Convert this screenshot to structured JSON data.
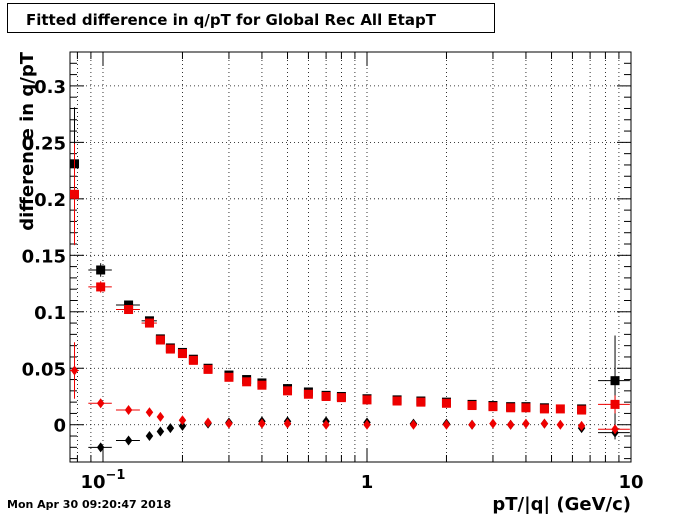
{
  "title": "Fitted difference in q/pT for Global Rec All EtapT",
  "footer": "Mon Apr 30 09:20:47 2018",
  "colors": {
    "series_a": "#000000",
    "series_b": "#ee0000",
    "grid": "#000000"
  },
  "chart_data": {
    "type": "scatter",
    "title": "Fitted difference in q/pT for Global Rec All EtapT",
    "xlabel": "pT/|q| (GeV/c)",
    "ylabel": "difference in q/pT",
    "xscale": "log",
    "xlim": [
      0.075,
      10
    ],
    "ylim": [
      -0.033,
      0.33
    ],
    "grid": true,
    "x_tick_labels": [
      {
        "value": 0.1,
        "base": "10",
        "exp": "−1"
      },
      {
        "value": 1,
        "base": "1",
        "exp": ""
      },
      {
        "value": 10,
        "base": "10",
        "exp": ""
      }
    ],
    "y_tick_labels": [
      "0",
      "0.05",
      "0.1",
      "0.15",
      "0.2",
      "0.25",
      "0.3"
    ],
    "y_tick_values": [
      0,
      0.05,
      0.1,
      0.15,
      0.2,
      0.25,
      0.3
    ],
    "series": [
      {
        "color": "#000000",
        "marker": "square",
        "points": [
          {
            "x": 0.078,
            "y": 0.231,
            "xerr": 0.003,
            "yerr": 0.05
          },
          {
            "x": 0.098,
            "y": 0.137,
            "xerr": 0.01,
            "yerr": 0.006
          },
          {
            "x": 0.125,
            "y": 0.106,
            "xerr": 0.013,
            "yerr": 0.003
          },
          {
            "x": 0.15,
            "y": 0.092,
            "xerr": 0.01,
            "yerr": 0.002
          },
          {
            "x": 0.165,
            "y": 0.076
          },
          {
            "x": 0.18,
            "y": 0.068
          },
          {
            "x": 0.2,
            "y": 0.064
          },
          {
            "x": 0.22,
            "y": 0.058
          },
          {
            "x": 0.25,
            "y": 0.05
          },
          {
            "x": 0.3,
            "y": 0.044
          },
          {
            "x": 0.35,
            "y": 0.04
          },
          {
            "x": 0.4,
            "y": 0.037
          },
          {
            "x": 0.5,
            "y": 0.032
          },
          {
            "x": 0.6,
            "y": 0.029
          },
          {
            "x": 0.7,
            "y": 0.026
          },
          {
            "x": 0.8,
            "y": 0.025
          },
          {
            "x": 1.0,
            "y": 0.023
          },
          {
            "x": 1.3,
            "y": 0.022
          },
          {
            "x": 1.6,
            "y": 0.021
          },
          {
            "x": 2.0,
            "y": 0.02
          },
          {
            "x": 2.5,
            "y": 0.018
          },
          {
            "x": 3.0,
            "y": 0.017
          },
          {
            "x": 3.5,
            "y": 0.016
          },
          {
            "x": 4.0,
            "y": 0.016
          },
          {
            "x": 4.7,
            "y": 0.015
          },
          {
            "x": 6.5,
            "y": 0.014
          },
          {
            "x": 8.7,
            "y": 0.039,
            "xerr": 1.2,
            "yerr": 0.04
          }
        ]
      },
      {
        "color": "#ee0000",
        "marker": "square",
        "points": [
          {
            "x": 0.078,
            "y": 0.204,
            "xerr": 0.003,
            "yerr": 0.045
          },
          {
            "x": 0.098,
            "y": 0.122,
            "xerr": 0.01,
            "yerr": 0.005
          },
          {
            "x": 0.125,
            "y": 0.102,
            "xerr": 0.013,
            "yerr": 0.003
          },
          {
            "x": 0.15,
            "y": 0.09,
            "xerr": 0.01,
            "yerr": 0.002
          },
          {
            "x": 0.165,
            "y": 0.075
          },
          {
            "x": 0.18,
            "y": 0.067
          },
          {
            "x": 0.2,
            "y": 0.063
          },
          {
            "x": 0.22,
            "y": 0.057
          },
          {
            "x": 0.25,
            "y": 0.049
          },
          {
            "x": 0.3,
            "y": 0.042
          },
          {
            "x": 0.35,
            "y": 0.038
          },
          {
            "x": 0.4,
            "y": 0.035
          },
          {
            "x": 0.5,
            "y": 0.03
          },
          {
            "x": 0.6,
            "y": 0.027
          },
          {
            "x": 0.7,
            "y": 0.025
          },
          {
            "x": 0.8,
            "y": 0.024
          },
          {
            "x": 1.0,
            "y": 0.022
          },
          {
            "x": 1.3,
            "y": 0.021
          },
          {
            "x": 1.6,
            "y": 0.02
          },
          {
            "x": 2.0,
            "y": 0.019
          },
          {
            "x": 2.5,
            "y": 0.017
          },
          {
            "x": 3.0,
            "y": 0.016
          },
          {
            "x": 3.5,
            "y": 0.015
          },
          {
            "x": 4.0,
            "y": 0.015
          },
          {
            "x": 4.7,
            "y": 0.014
          },
          {
            "x": 5.4,
            "y": 0.014
          },
          {
            "x": 6.5,
            "y": 0.013
          },
          {
            "x": 8.7,
            "y": 0.018,
            "xerr": 1.2,
            "yerr": 0.008
          }
        ]
      },
      {
        "color": "#000000",
        "marker": "diamond",
        "points": [
          {
            "x": 0.098,
            "y": -0.02,
            "xerr": 0.01,
            "yerr": 0.003
          },
          {
            "x": 0.125,
            "y": -0.014,
            "xerr": 0.013,
            "yerr": 0.002
          },
          {
            "x": 0.15,
            "y": -0.01
          },
          {
            "x": 0.165,
            "y": -0.006
          },
          {
            "x": 0.18,
            "y": -0.003
          },
          {
            "x": 0.2,
            "y": -0.001
          },
          {
            "x": 0.25,
            "y": 0.001
          },
          {
            "x": 0.3,
            "y": 0.002
          },
          {
            "x": 0.4,
            "y": 0.003
          },
          {
            "x": 0.5,
            "y": 0.003
          },
          {
            "x": 0.7,
            "y": 0.003
          },
          {
            "x": 1.0,
            "y": 0.002
          },
          {
            "x": 1.5,
            "y": 0.001
          },
          {
            "x": 2.0,
            "y": 0.001
          },
          {
            "x": 2.5,
            "y": 0.0
          },
          {
            "x": 3.5,
            "y": 0.0
          },
          {
            "x": 4.7,
            "y": 0.001
          },
          {
            "x": 6.5,
            "y": -0.003
          },
          {
            "x": 8.7,
            "y": -0.007,
            "xerr": 1.2,
            "yerr": 0.006
          }
        ]
      },
      {
        "color": "#ee0000",
        "marker": "diamond",
        "points": [
          {
            "x": 0.078,
            "y": 0.048,
            "xerr": 0.003,
            "yerr": 0.025
          },
          {
            "x": 0.098,
            "y": 0.019,
            "xerr": 0.01,
            "yerr": 0.003
          },
          {
            "x": 0.125,
            "y": 0.013,
            "xerr": 0.013,
            "yerr": 0.002
          },
          {
            "x": 0.15,
            "y": 0.011
          },
          {
            "x": 0.165,
            "y": 0.007
          },
          {
            "x": 0.2,
            "y": 0.004
          },
          {
            "x": 0.25,
            "y": 0.002
          },
          {
            "x": 0.3,
            "y": 0.001
          },
          {
            "x": 0.4,
            "y": 0.001
          },
          {
            "x": 0.5,
            "y": 0.001
          },
          {
            "x": 0.7,
            "y": 0.0
          },
          {
            "x": 1.0,
            "y": 0.0
          },
          {
            "x": 1.5,
            "y": 0.0
          },
          {
            "x": 2.0,
            "y": 0.0
          },
          {
            "x": 2.5,
            "y": 0.0
          },
          {
            "x": 3.0,
            "y": 0.001
          },
          {
            "x": 3.5,
            "y": 0.0
          },
          {
            "x": 4.0,
            "y": 0.001
          },
          {
            "x": 4.7,
            "y": 0.001
          },
          {
            "x": 5.4,
            "y": 0.0
          },
          {
            "x": 6.5,
            "y": -0.001
          },
          {
            "x": 8.7,
            "y": -0.004,
            "xerr": 1.2,
            "yerr": 0.004
          }
        ]
      }
    ]
  }
}
